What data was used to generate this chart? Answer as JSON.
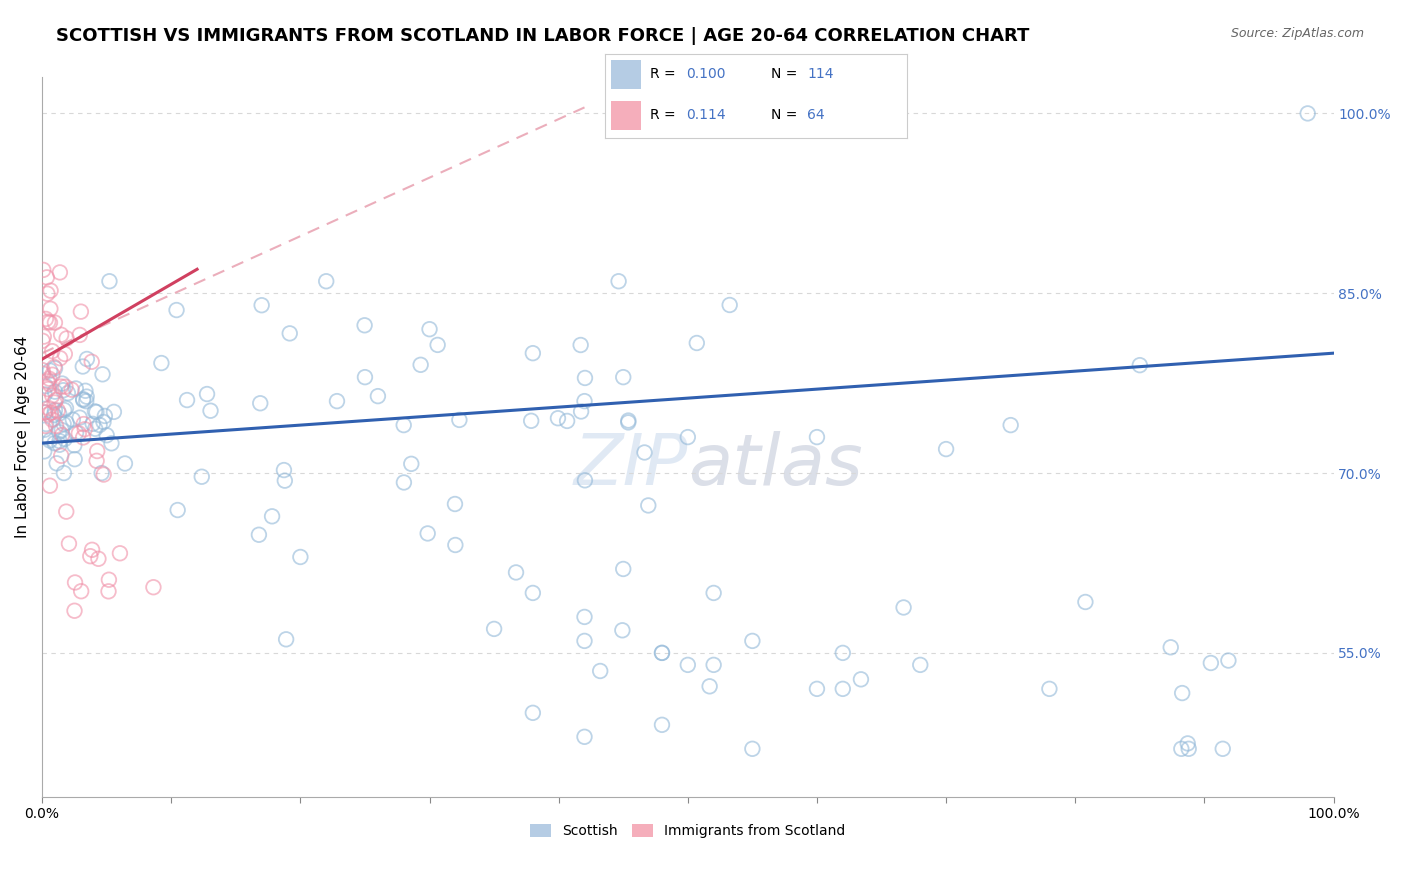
{
  "title": "SCOTTISH VS IMMIGRANTS FROM SCOTLAND IN LABOR FORCE | AGE 20-64 CORRELATION CHART",
  "source": "Source: ZipAtlas.com",
  "ylabel": "In Labor Force | Age 20-64",
  "xlim": [
    0.0,
    1.0
  ],
  "ylim": [
    0.43,
    1.03
  ],
  "y_tick_labels_right": [
    "100.0%",
    "85.0%",
    "70.0%",
    "55.0%"
  ],
  "y_tick_positions_right": [
    1.0,
    0.85,
    0.7,
    0.55
  ],
  "legend_entries": [
    {
      "label": "Scottish",
      "color": "#a8c4e0",
      "R": "0.100",
      "N": "114"
    },
    {
      "label": "Immigrants from Scotland",
      "color": "#f4a0b0",
      "R": "0.114",
      "N": "64"
    }
  ],
  "watermark": "ZIPatlas",
  "blue_line_x": [
    0.0,
    1.0
  ],
  "blue_line_y": [
    0.725,
    0.8
  ],
  "pink_line_x": [
    0.0,
    0.12
  ],
  "pink_line_y": [
    0.795,
    0.87
  ],
  "pink_dash_line_x": [
    0.0,
    0.42
  ],
  "pink_dash_line_y": [
    0.8,
    1.005
  ],
  "scatter_size": 110,
  "scatter_alpha": 0.5,
  "blue_color": "#92b8d8",
  "pink_color": "#f090a8",
  "blue_line_color": "#3060b0",
  "pink_line_color": "#d04060",
  "pink_dash_color": "#e8a0b0",
  "grid_color": "#d8d8d8",
  "title_fontsize": 13,
  "axis_label_fontsize": 11,
  "tick_fontsize": 10,
  "right_tick_color": "#4472c4"
}
